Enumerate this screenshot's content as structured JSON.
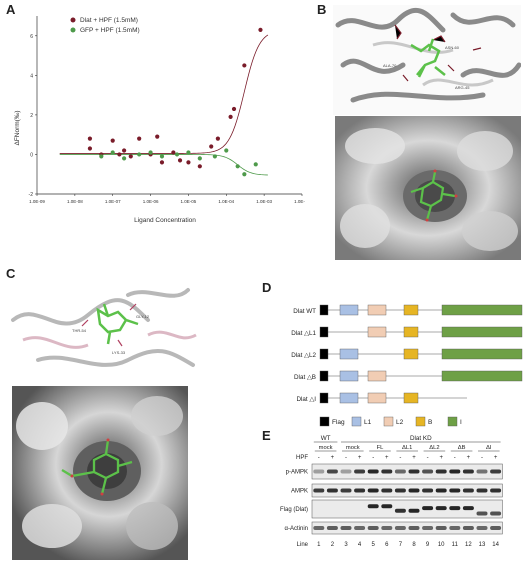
{
  "panels": {
    "a": "A",
    "b": "B",
    "c": "C",
    "d": "D",
    "e": "E"
  },
  "chart_data": {
    "type": "scatter",
    "xscale": "log",
    "xlabel": "Ligand Concentration",
    "ylabel": "ΔFNorm(‰)",
    "xlim": [
      1e-09,
      0.01
    ],
    "ylim": [
      -2,
      7
    ],
    "xticks": [
      "1.0E-09",
      "1.0E-08",
      "1.0E-07",
      "1.0E-06",
      "1.0E-05",
      "1.0E-04",
      "1.0E-03",
      "1.0E-02"
    ],
    "yticks": [
      "-2",
      "0",
      "2",
      "4",
      "6"
    ],
    "legend_position": "top-left",
    "series": [
      {
        "name": "Dlat + HPF (1.5mM)",
        "color": "#7a1c2a",
        "x": [
          2.5e-08,
          2.5e-08,
          5e-08,
          1e-07,
          1.5e-07,
          2e-07,
          3e-07,
          5e-07,
          1e-06,
          1.5e-06,
          2e-06,
          4e-06,
          6e-06,
          1e-05,
          2e-05,
          4e-05,
          6e-05,
          0.00013,
          0.00016,
          0.0003,
          0.0008
        ],
        "y": [
          0.8,
          0.3,
          0.0,
          0.7,
          0.0,
          0.2,
          -0.1,
          0.8,
          0.0,
          0.9,
          -0.4,
          0.1,
          -0.3,
          -0.4,
          -0.6,
          0.4,
          0.8,
          1.9,
          2.3,
          4.5,
          6.3
        ]
      },
      {
        "name": "GFP + HPF (1.5mM)",
        "color": "#4e9a4a",
        "x": [
          5e-08,
          1e-07,
          2e-07,
          5e-07,
          1e-06,
          2e-06,
          5e-06,
          1e-05,
          2e-05,
          5e-05,
          0.0001,
          0.0002,
          0.0003,
          0.0006
        ],
        "y": [
          -0.1,
          0.1,
          -0.2,
          0.0,
          0.1,
          -0.1,
          0.0,
          0.1,
          -0.2,
          -0.1,
          0.2,
          -0.6,
          -1.0,
          -0.5
        ]
      }
    ]
  },
  "panelB": {
    "labels": [
      "ALA-70",
      "ASN-60",
      "ARG-45"
    ]
  },
  "panelC": {
    "labels": [
      "THR-54",
      "GLY-12",
      "LYS-33"
    ]
  },
  "panelD": {
    "constructs": [
      "Dlat WT",
      "Dlat △L1",
      "Dlat △L2",
      "Dlat △B",
      "Dlat △I"
    ],
    "legend": [
      "Flag",
      "L1",
      "L2",
      "B",
      "I"
    ],
    "colors": {
      "Flag": "#000000",
      "L1": "#a9c0e4",
      "L2": "#f1cdb4",
      "B": "#e6b524",
      "I": "#6ea046"
    }
  },
  "panelE": {
    "group_wt": "WT",
    "group_kd": "Dlat KD",
    "conditions": [
      "mock",
      "mock",
      "FL",
      "ΔL1",
      "ΔL2",
      "ΔB",
      "ΔI"
    ],
    "hpf_label": "HPF",
    "hpf_states": [
      "-",
      "+",
      "-",
      "+",
      "-",
      "+",
      "-",
      "+",
      "-",
      "+",
      "-",
      "+",
      "-",
      "+"
    ],
    "rows": [
      "p-AMPK",
      "AMPK",
      "Flag (Dlat)",
      "α-Actinin"
    ],
    "line_label": "Line",
    "lanes": [
      "1",
      "2",
      "3",
      "4",
      "5",
      "6",
      "7",
      "8",
      "9",
      "10",
      "11",
      "12",
      "13",
      "14"
    ]
  }
}
